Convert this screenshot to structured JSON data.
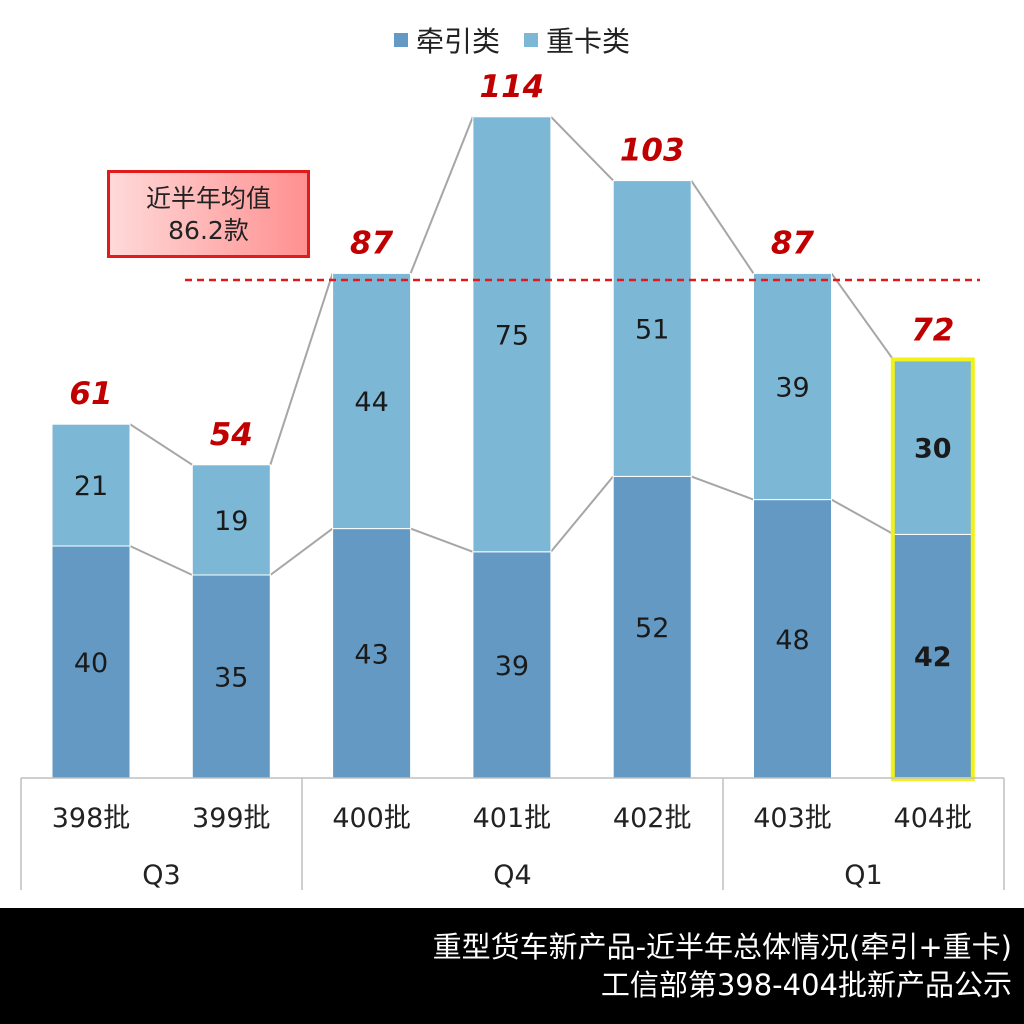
{
  "legend": {
    "items": [
      {
        "label": "牵引类",
        "color": "#6399c3"
      },
      {
        "label": "重卡类",
        "color": "#7db7d6"
      }
    ]
  },
  "average": {
    "label_line1": "近半年均值",
    "label_line2": "86.2款",
    "value": 86.2
  },
  "footer": {
    "line1": "重型货车新产品-近半年总体情况(牵引+重卡)",
    "line2": "工信部第398-404批新产品公示"
  },
  "colors": {
    "traction": "#6399c3",
    "heavy": "#7db7d6",
    "total_label": "#c00000",
    "average_line": "#e11b1b",
    "highlight_border": "#f2f21a",
    "connector": "#a6a6a6"
  },
  "chart_data": {
    "type": "bar",
    "stacked": true,
    "categories": [
      "398批",
      "399批",
      "400批",
      "401批",
      "402批",
      "403批",
      "404批"
    ],
    "groups": [
      {
        "label": "Q3",
        "categories": [
          "398批",
          "399批"
        ]
      },
      {
        "label": "Q4",
        "categories": [
          "400批",
          "401批",
          "402批"
        ]
      },
      {
        "label": "Q1",
        "categories": [
          "403批",
          "404批"
        ]
      }
    ],
    "series": [
      {
        "name": "牵引类",
        "values": [
          40,
          35,
          43,
          39,
          52,
          48,
          42
        ]
      },
      {
        "name": "重卡类",
        "values": [
          21,
          19,
          44,
          75,
          51,
          39,
          30
        ]
      }
    ],
    "totals": [
      61,
      54,
      87,
      114,
      103,
      87,
      72
    ],
    "average_line": 86.2,
    "highlighted_category": "404批",
    "ylim": [
      0,
      114
    ],
    "legend_position": "top",
    "grid": false
  }
}
